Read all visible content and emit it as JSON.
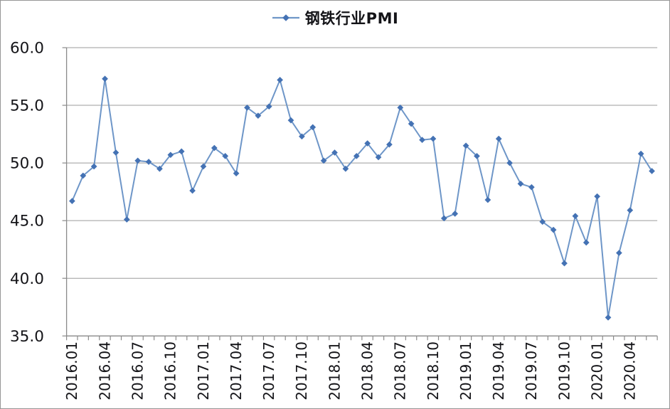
{
  "page": {
    "background": "#FFFFFF",
    "border_color": "#969696"
  },
  "chart_data": {
    "type": "line",
    "title": "",
    "legend": "钢铁行业PMI",
    "legend_position": "top-center",
    "marker": "diamond",
    "grid": true,
    "xlabel": "",
    "ylabel": "",
    "ylim": [
      35,
      60
    ],
    "ytick_step": 5,
    "ytick_labels": [
      "35.0",
      "40.0",
      "45.0",
      "50.0",
      "55.0",
      "60.0"
    ],
    "x_tick_label_interval": 3,
    "x": [
      "2016.01",
      "2016.02",
      "2016.03",
      "2016.04",
      "2016.05",
      "2016.06",
      "2016.07",
      "2016.08",
      "2016.09",
      "2016.10",
      "2016.11",
      "2016.12",
      "2017.01",
      "2017.02",
      "2017.03",
      "2017.04",
      "2017.05",
      "2017.06",
      "2017.07",
      "2017.08",
      "2017.09",
      "2017.10",
      "2017.11",
      "2017.12",
      "2018.01",
      "2018.02",
      "2018.03",
      "2018.04",
      "2018.05",
      "2018.06",
      "2018.07",
      "2018.08",
      "2018.09",
      "2018.10",
      "2018.11",
      "2018.12",
      "2019.01",
      "2019.02",
      "2019.03",
      "2019.04",
      "2019.05",
      "2019.06",
      "2019.07",
      "2019.08",
      "2019.09",
      "2019.10",
      "2019.11",
      "2019.12",
      "2020.01",
      "2020.02",
      "2020.03",
      "2020.04",
      "2020.05",
      "2020.06"
    ],
    "series": [
      {
        "name": "钢铁行业PMI",
        "values": [
          46.7,
          48.9,
          49.7,
          57.3,
          50.9,
          45.1,
          50.2,
          50.1,
          49.5,
          50.7,
          51.0,
          47.6,
          49.7,
          51.3,
          50.6,
          49.1,
          54.8,
          54.1,
          54.9,
          57.2,
          53.7,
          52.3,
          53.1,
          50.2,
          50.9,
          49.5,
          50.6,
          51.7,
          50.5,
          51.6,
          54.8,
          53.4,
          52.0,
          52.1,
          45.2,
          45.6,
          51.5,
          50.6,
          46.8,
          52.1,
          50.0,
          48.2,
          47.9,
          44.9,
          44.2,
          41.3,
          45.4,
          43.1,
          47.1,
          36.6,
          42.2,
          45.9,
          50.8,
          49.3
        ]
      }
    ],
    "colors": {
      "line": "#6E96C8",
      "marker": "#4472B4",
      "grid": "#9B9B9B",
      "axis": "#8A8A8A",
      "text": "#141418"
    }
  }
}
